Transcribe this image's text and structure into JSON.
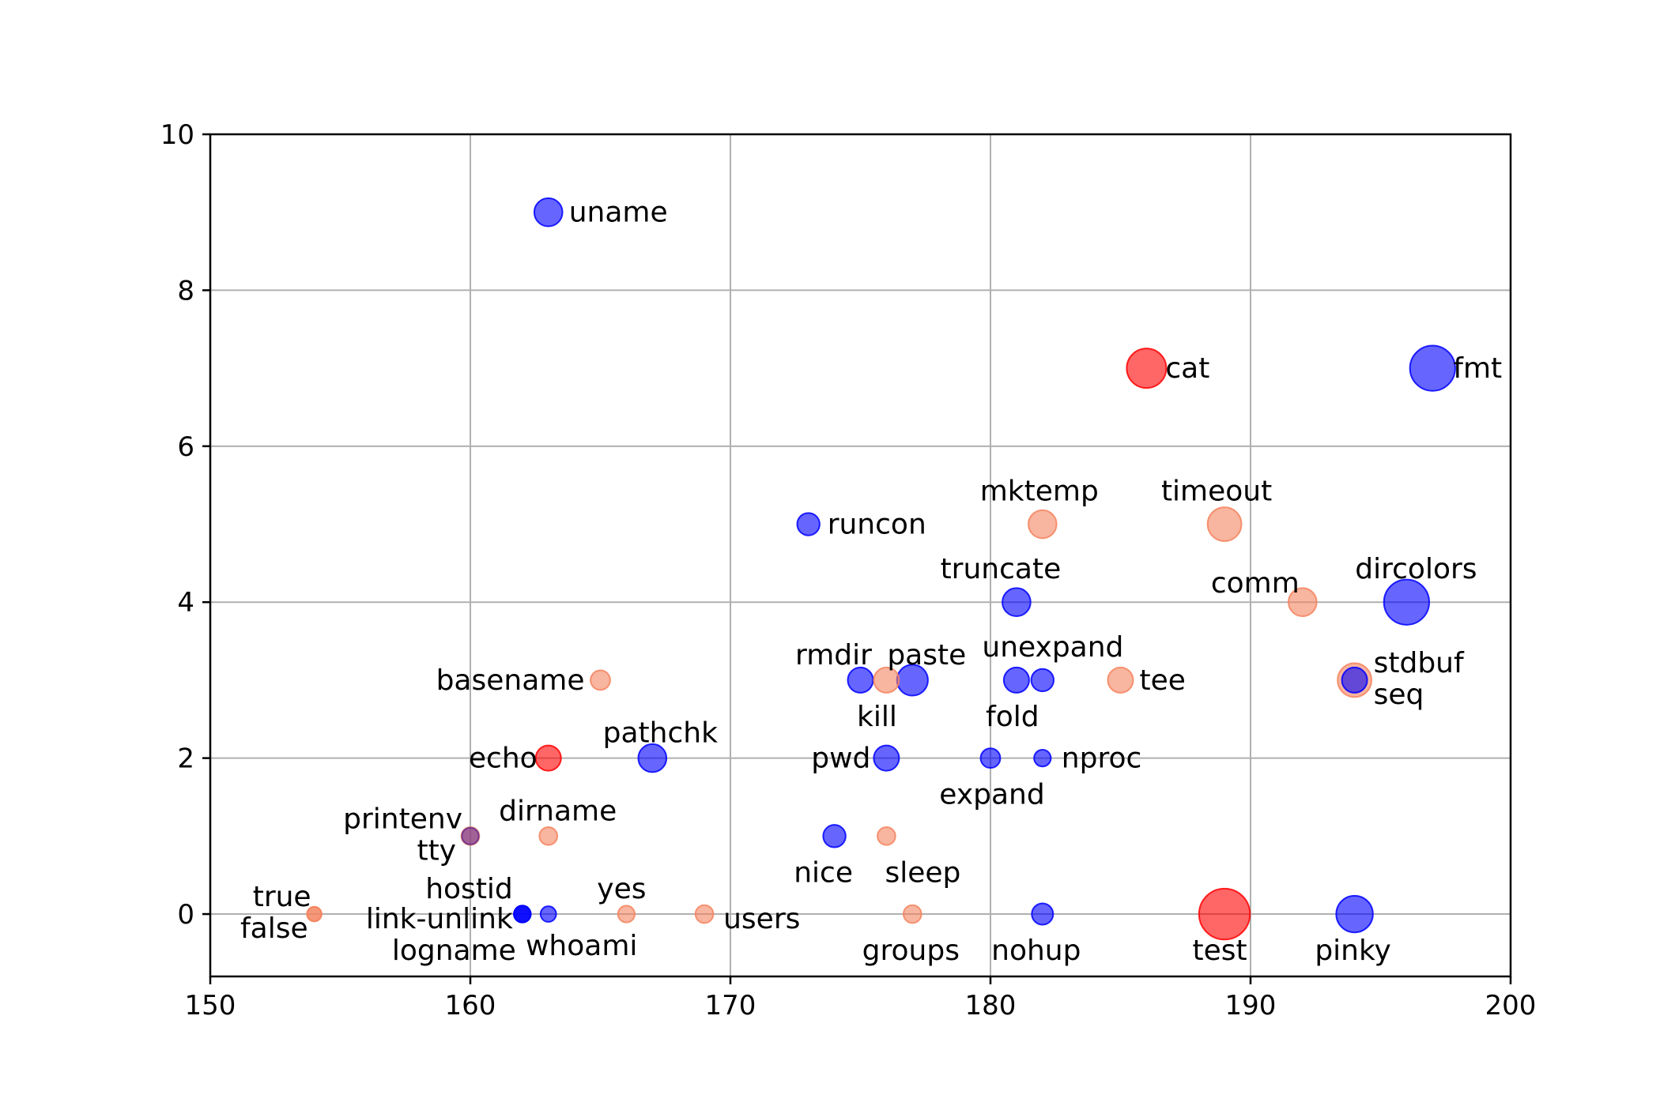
{
  "chart_data": {
    "type": "scatter",
    "title": "",
    "xlabel": "",
    "ylabel": "",
    "xlim": [
      150,
      200
    ],
    "ylim": [
      -0.8,
      10
    ],
    "xticks": [
      150,
      160,
      170,
      180,
      190,
      200
    ],
    "yticks": [
      0,
      2,
      4,
      6,
      8,
      10
    ],
    "grid": true,
    "legend": false,
    "colors": {
      "blue": "#0000ff",
      "red": "#ff0000",
      "salmon": "#f4845f",
      "purple": "#6a2c91"
    },
    "points": [
      {
        "label": "uname",
        "x": 163,
        "y": 9,
        "color": "blue",
        "size": 3
      },
      {
        "label": "cat",
        "x": 186,
        "y": 7,
        "color": "red",
        "size": 5
      },
      {
        "label": "fmt",
        "x": 197,
        "y": 7,
        "color": "blue",
        "size": 6
      },
      {
        "label": "runcon",
        "x": 173,
        "y": 5,
        "color": "blue",
        "size": 2
      },
      {
        "label": "mktemp",
        "x": 182,
        "y": 5,
        "color": "salmon",
        "size": 3
      },
      {
        "label": "timeout",
        "x": 189,
        "y": 5,
        "color": "salmon",
        "size": 4
      },
      {
        "label": "truncate",
        "x": 181,
        "y": 4,
        "color": "blue",
        "size": 3
      },
      {
        "label": "comm",
        "x": 192,
        "y": 4,
        "color": "salmon",
        "size": 3
      },
      {
        "label": "dircolors",
        "x": 196,
        "y": 4,
        "color": "blue",
        "size": 6
      },
      {
        "label": "basename",
        "x": 165,
        "y": 3,
        "color": "salmon",
        "size": 1.5
      },
      {
        "label": "rmdir",
        "x": 175,
        "y": 3,
        "color": "blue",
        "size": 2.5
      },
      {
        "label": "kill",
        "x": 176,
        "y": 3,
        "color": "salmon",
        "size": 2.5
      },
      {
        "label": "paste",
        "x": 177,
        "y": 3,
        "color": "blue",
        "size": 3.5
      },
      {
        "label": "unexpand",
        "x": 181,
        "y": 3,
        "color": "blue",
        "size": 2.5
      },
      {
        "label": "fold",
        "x": 182,
        "y": 3,
        "color": "blue",
        "size": 2
      },
      {
        "label": "tee",
        "x": 185,
        "y": 3,
        "color": "salmon",
        "size": 2.5
      },
      {
        "label": "stdbuf",
        "x": 194,
        "y": 3,
        "color": "salmon",
        "size": 4
      },
      {
        "label": "seq",
        "x": 194,
        "y": 3,
        "color": "blue",
        "size": 2.5
      },
      {
        "label": "echo",
        "x": 163,
        "y": 2,
        "color": "red",
        "size": 2.5
      },
      {
        "label": "pathchk",
        "x": 167,
        "y": 2,
        "color": "blue",
        "size": 3
      },
      {
        "label": "pwd",
        "x": 176,
        "y": 2,
        "color": "blue",
        "size": 2.5
      },
      {
        "label": "expand",
        "x": 180,
        "y": 2,
        "color": "blue",
        "size": 1.5
      },
      {
        "label": "nproc",
        "x": 182,
        "y": 2,
        "color": "blue",
        "size": 1
      },
      {
        "label": "printenv",
        "x": 160,
        "y": 1,
        "color": "salmon",
        "size": 1.2
      },
      {
        "label": "tty",
        "x": 160,
        "y": 1,
        "color": "purple",
        "size": 1
      },
      {
        "label": "dirname",
        "x": 163,
        "y": 1,
        "color": "salmon",
        "size": 1.2
      },
      {
        "label": "nice",
        "x": 174,
        "y": 1,
        "color": "blue",
        "size": 2
      },
      {
        "label": "sleep",
        "x": 176,
        "y": 1,
        "color": "salmon",
        "size": 1.2
      },
      {
        "label": "true",
        "x": 154,
        "y": 0,
        "color": "salmon",
        "size": 0.6
      },
      {
        "label": "false",
        "x": 154,
        "y": 0,
        "color": "salmon",
        "size": 0.6
      },
      {
        "label": "hostid",
        "x": 162,
        "y": 0,
        "color": "blue",
        "size": 1
      },
      {
        "label": "link-unlink",
        "x": 162,
        "y": 0,
        "color": "blue",
        "size": 1
      },
      {
        "label": "logname",
        "x": 162,
        "y": 0,
        "color": "blue",
        "size": 1
      },
      {
        "label": "whoami",
        "x": 163,
        "y": 0,
        "color": "blue",
        "size": 0.8
      },
      {
        "label": "yes",
        "x": 166,
        "y": 0,
        "color": "salmon",
        "size": 1
      },
      {
        "label": "users",
        "x": 169,
        "y": 0,
        "color": "salmon",
        "size": 1.2
      },
      {
        "label": "groups",
        "x": 177,
        "y": 0,
        "color": "salmon",
        "size": 1.2
      },
      {
        "label": "nohup",
        "x": 182,
        "y": 0,
        "color": "blue",
        "size": 1.8
      },
      {
        "label": "test",
        "x": 189,
        "y": 0,
        "color": "red",
        "size": 7
      },
      {
        "label": "pinky",
        "x": 194,
        "y": 0,
        "color": "blue",
        "size": 4.5
      }
    ]
  }
}
